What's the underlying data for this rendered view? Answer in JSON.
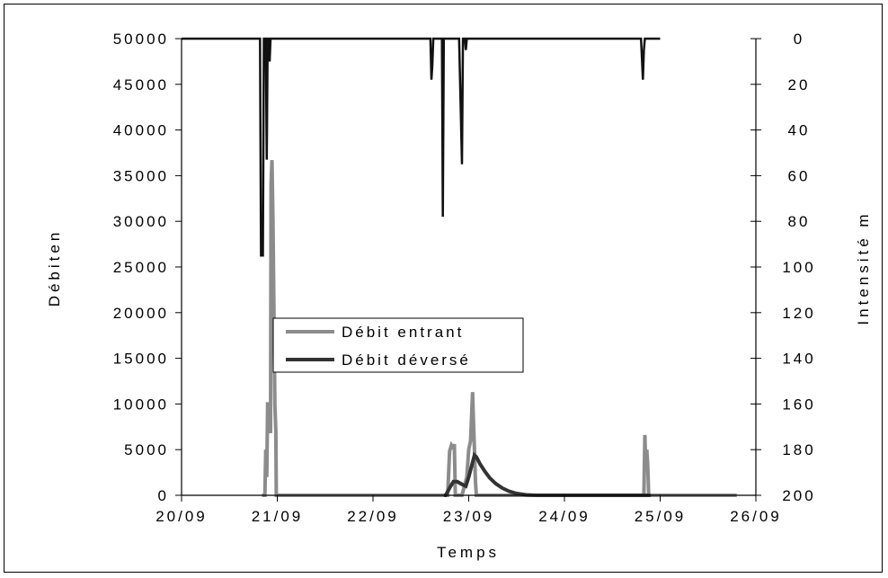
{
  "chart_data": {
    "type": "line",
    "title": "",
    "xlabel": "Temps",
    "ylabel_left": "Débiten",
    "ylabel_right": "Intensité m",
    "x_ticks": [
      "20/09",
      "21/09",
      "22/09",
      "23/09",
      "24/09",
      "25/09",
      "26/09"
    ],
    "xlim": [
      20,
      26
    ],
    "y_left_ticks": [
      "50000",
      "45000",
      "40000",
      "35000",
      "30000",
      "25000",
      "20000",
      "15000",
      "10000",
      "5000",
      "0"
    ],
    "ylim_left": [
      0,
      50000
    ],
    "y_right_ticks": [
      "0",
      "20",
      "40",
      "60",
      "80",
      "100",
      "120",
      "140",
      "160",
      "180",
      "200"
    ],
    "ylim_right": [
      0,
      200
    ],
    "y_right_inverted": true,
    "grid": false,
    "legend_position": "center-left",
    "series": [
      {
        "name": "Débit entrant",
        "axis": "left",
        "color": "#8c8c8c",
        "points": [
          [
            20.84,
            0
          ],
          [
            20.87,
            0
          ],
          [
            20.88,
            5000
          ],
          [
            20.89,
            2000
          ],
          [
            20.9,
            10200
          ],
          [
            20.91,
            7000
          ],
          [
            20.92,
            10000
          ],
          [
            20.93,
            6800
          ],
          [
            20.935,
            34000
          ],
          [
            20.945,
            36700
          ],
          [
            20.955,
            30000
          ],
          [
            20.965,
            20000
          ],
          [
            20.975,
            10000
          ],
          [
            20.985,
            7000
          ],
          [
            20.99,
            0
          ],
          [
            22.75,
            0
          ],
          [
            22.78,
            0
          ],
          [
            22.8,
            4800
          ],
          [
            22.82,
            5500
          ],
          [
            22.84,
            5200
          ],
          [
            22.85,
            5600
          ],
          [
            22.86,
            0
          ],
          [
            22.93,
            0
          ],
          [
            22.98,
            2000
          ],
          [
            23.0,
            5000
          ],
          [
            23.02,
            6000
          ],
          [
            23.04,
            11300
          ],
          [
            23.05,
            8000
          ],
          [
            23.06,
            5000
          ],
          [
            23.07,
            1500
          ],
          [
            23.08,
            0
          ],
          [
            24.8,
            0
          ],
          [
            24.83,
            0
          ],
          [
            24.84,
            6600
          ],
          [
            24.85,
            3000
          ],
          [
            24.86,
            5000
          ],
          [
            24.87,
            3300
          ],
          [
            24.88,
            0
          ],
          [
            25.8,
            0
          ]
        ]
      },
      {
        "name": "Débit déversé",
        "axis": "left",
        "color": "#333333",
        "points": [
          [
            22.74,
            0
          ],
          [
            22.76,
            0
          ],
          [
            22.8,
            800
          ],
          [
            22.84,
            1500
          ],
          [
            22.88,
            1500
          ],
          [
            22.93,
            1200
          ],
          [
            22.97,
            1000
          ],
          [
            23.0,
            2000
          ],
          [
            23.04,
            3600
          ],
          [
            23.06,
            4400
          ],
          [
            23.08,
            4200
          ],
          [
            23.12,
            3400
          ],
          [
            23.17,
            2600
          ],
          [
            23.22,
            1900
          ],
          [
            23.28,
            1300
          ],
          [
            23.35,
            800
          ],
          [
            23.42,
            450
          ],
          [
            23.5,
            200
          ],
          [
            23.6,
            50
          ],
          [
            23.7,
            0
          ],
          [
            24.9,
            0
          ]
        ]
      },
      {
        "name": "Intensité",
        "axis": "right",
        "color": "#111111",
        "points": [
          [
            20.0,
            0
          ],
          [
            20.82,
            0
          ],
          [
            20.83,
            95
          ],
          [
            20.85,
            95
          ],
          [
            20.86,
            0
          ],
          [
            20.88,
            0
          ],
          [
            20.89,
            53
          ],
          [
            20.9,
            0
          ],
          [
            20.91,
            0
          ],
          [
            20.92,
            10
          ],
          [
            20.93,
            0
          ],
          [
            22.6,
            0
          ],
          [
            22.61,
            18
          ],
          [
            22.62,
            12
          ],
          [
            22.63,
            0
          ],
          [
            22.72,
            0
          ],
          [
            22.73,
            78
          ],
          [
            22.74,
            0
          ],
          [
            22.9,
            0
          ],
          [
            22.93,
            55
          ],
          [
            22.94,
            0
          ],
          [
            22.96,
            0
          ],
          [
            22.97,
            5
          ],
          [
            22.98,
            0
          ],
          [
            24.8,
            0
          ],
          [
            24.82,
            18
          ],
          [
            24.83,
            5
          ],
          [
            24.84,
            0
          ],
          [
            24.9,
            0
          ],
          [
            25.0,
            0
          ]
        ]
      }
    ]
  }
}
